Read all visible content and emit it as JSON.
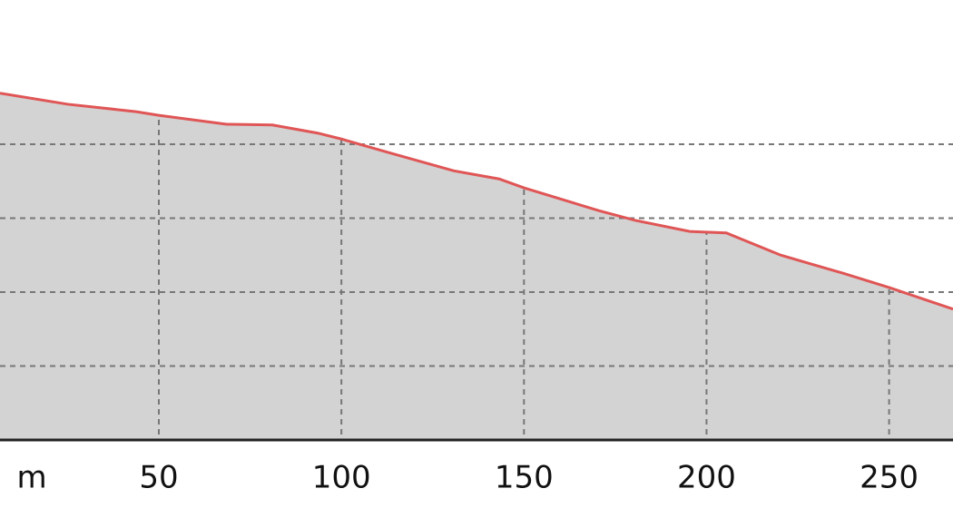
{
  "chart_data": {
    "type": "area",
    "x_label": "m",
    "x": [
      6.5,
      25.1,
      43.8,
      50,
      68.6,
      81.1,
      93.5,
      100,
      113.4,
      130.8,
      143.2,
      150,
      170.6,
      180.5,
      195.4,
      205.4,
      220.3,
      237.7,
      250.1,
      267.5
    ],
    "values": [
      4.69,
      4.54,
      4.44,
      4.39,
      4.27,
      4.26,
      4.15,
      4.07,
      3.88,
      3.64,
      3.53,
      3.41,
      3.1,
      2.97,
      2.82,
      2.8,
      2.5,
      2.25,
      2.06,
      1.77
    ],
    "color": "#e05555",
    "fill": "#d3d3d3",
    "xlim": [
      6.5,
      267.5
    ],
    "xticks": [
      50,
      100,
      150,
      200,
      250
    ],
    "ylim": [
      0,
      5.95
    ],
    "yticks": [
      1,
      2,
      3,
      4
    ],
    "grid": true
  }
}
